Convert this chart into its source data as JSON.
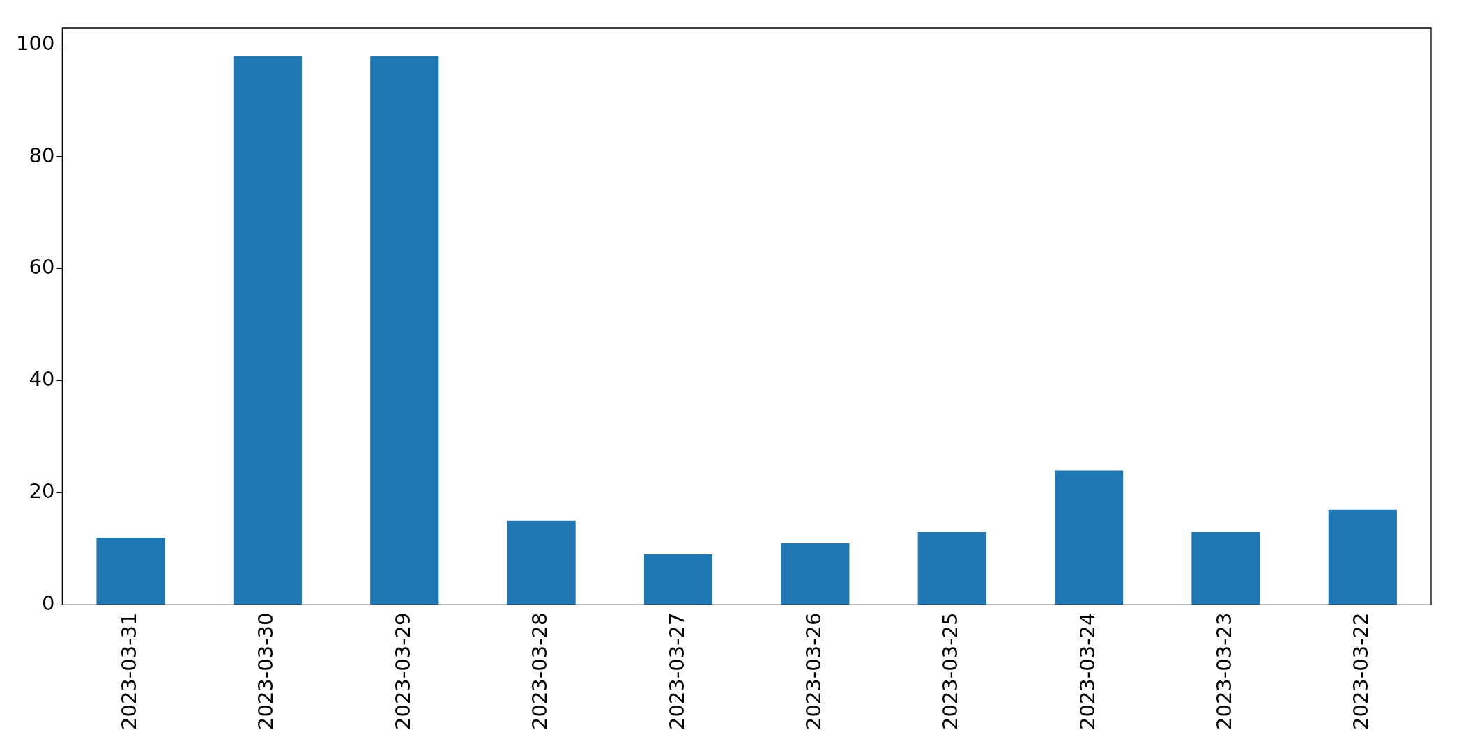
{
  "chart_data": {
    "type": "bar",
    "categories": [
      "2023-03-31",
      "2023-03-30",
      "2023-03-29",
      "2023-03-28",
      "2023-03-27",
      "2023-03-26",
      "2023-03-25",
      "2023-03-24",
      "2023-03-23",
      "2023-03-22"
    ],
    "values": [
      12,
      98,
      98,
      15,
      9,
      11,
      13,
      24,
      13,
      17
    ],
    "color": "#1f77b4",
    "ylim": [
      0,
      103
    ],
    "yticks": [
      0,
      20,
      40,
      60,
      80,
      100
    ],
    "grid": false,
    "legend": false
  }
}
